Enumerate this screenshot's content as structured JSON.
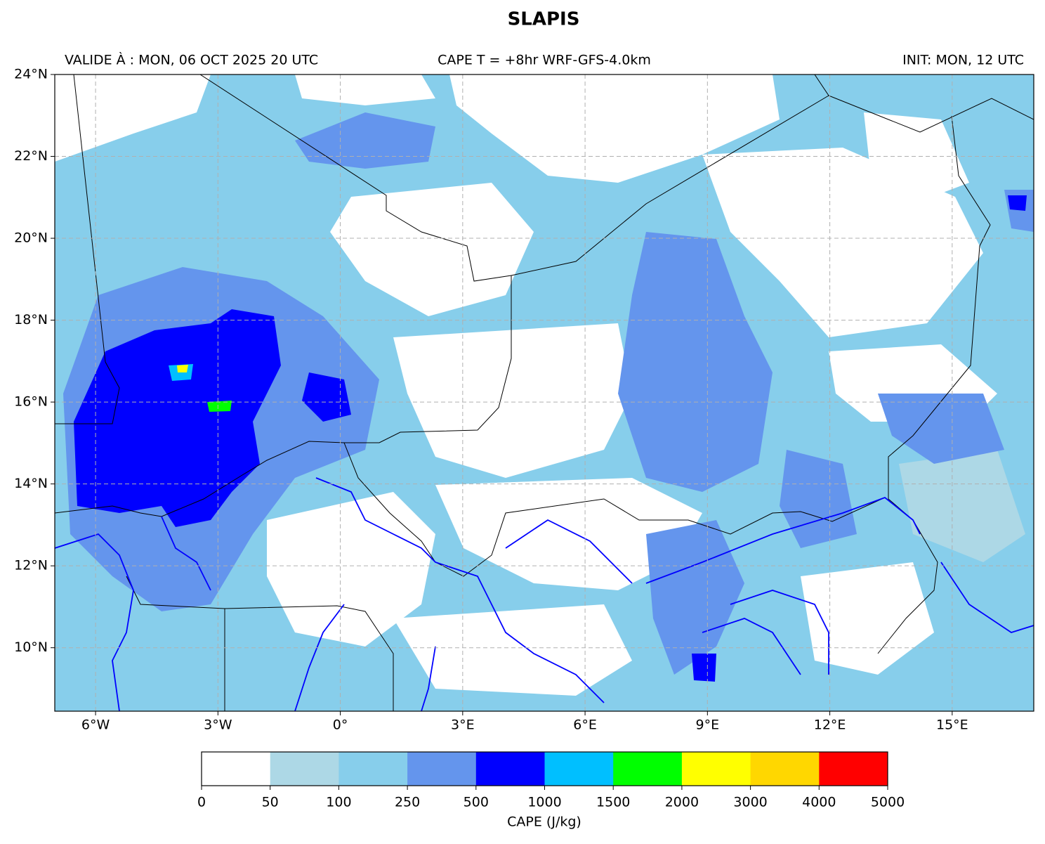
{
  "title": "SLAPIS",
  "header": {
    "valid": "VALIDE À : MON, 06 OCT 2025 20 UTC",
    "center": "CAPE T = +8hr WRF-GFS-4.0km",
    "init": "INIT: MON, 12 UTC"
  },
  "map": {
    "lonlim": [
      -7,
      17
    ],
    "latlim": [
      8.45,
      24
    ],
    "lon_ticks": [
      {
        "value": -6,
        "label": "6°W"
      },
      {
        "value": -3,
        "label": "3°W"
      },
      {
        "value": 0,
        "label": "0°"
      },
      {
        "value": 3,
        "label": "3°E"
      },
      {
        "value": 6,
        "label": "6°E"
      },
      {
        "value": 9,
        "label": "9°E"
      },
      {
        "value": 12,
        "label": "12°E"
      },
      {
        "value": 15,
        "label": "15°E"
      }
    ],
    "lat_ticks": [
      {
        "value": 10,
        "label": "10°N"
      },
      {
        "value": 12,
        "label": "12°N"
      },
      {
        "value": 14,
        "label": "14°N"
      },
      {
        "value": 16,
        "label": "16°N"
      },
      {
        "value": 18,
        "label": "18°N"
      },
      {
        "value": 20,
        "label": "20°N"
      },
      {
        "value": 22,
        "label": "22°N"
      },
      {
        "value": 24,
        "label": "24°N"
      }
    ],
    "grid": true
  },
  "colorbar": {
    "label": "CAPE (J/kg)",
    "bounds": [
      0,
      50,
      100,
      250,
      500,
      1000,
      1500,
      2000,
      3000,
      4000,
      5000
    ],
    "colors": [
      "#ffffff",
      "#add8e6",
      "#87ceeb",
      "#6495ed",
      "#0000ff",
      "#00bfff",
      "#00ff00",
      "#ffff00",
      "#ffd700",
      "#ff0000"
    ]
  }
}
